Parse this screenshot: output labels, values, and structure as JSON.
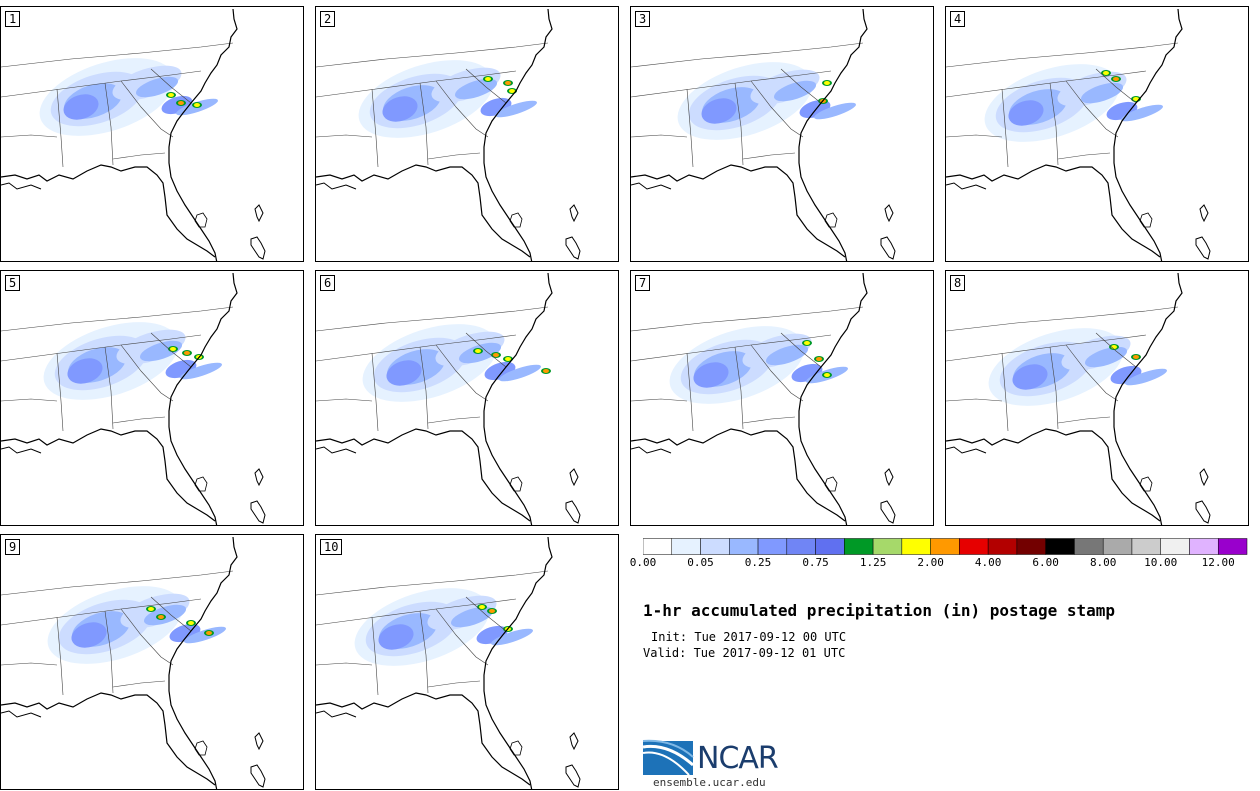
{
  "panels": [
    {
      "label": "1"
    },
    {
      "label": "2"
    },
    {
      "label": "3"
    },
    {
      "label": "4"
    },
    {
      "label": "5"
    },
    {
      "label": "6"
    },
    {
      "label": "7"
    },
    {
      "label": "8"
    },
    {
      "label": "9"
    },
    {
      "label": "10"
    }
  ],
  "colorbar": {
    "colors": [
      "#ffffff",
      "#e6f2ff",
      "#ccdcff",
      "#99b8ff",
      "#8099ff",
      "#7085f5",
      "#6070f0",
      "#009926",
      "#a6d96a",
      "#ffff00",
      "#ff9900",
      "#e60000",
      "#b30000",
      "#730000",
      "#000000",
      "#777777",
      "#aaaaaa",
      "#cccccc",
      "#f0f0f0",
      "#e0b3ff",
      "#9900cc"
    ],
    "tick_labels": [
      "0.00",
      "0.05",
      "0.25",
      "0.75",
      "1.25",
      "2.00",
      "4.00",
      "6.00",
      "8.00",
      "10.00",
      "12.00"
    ]
  },
  "title": "1-hr accumulated precipitation (in) postage stamp",
  "init_text": "Init: Tue 2017-09-12 00 UTC",
  "valid_text": "Valid: Tue 2017-09-12 01 UTC",
  "logo": {
    "name": "NCAR",
    "url": "ensemble.ucar.edu"
  }
}
